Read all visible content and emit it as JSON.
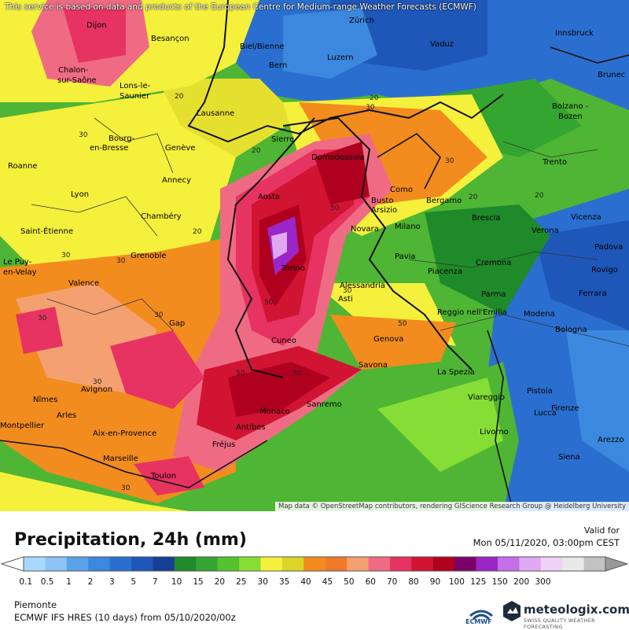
{
  "header": {
    "disclaimer": "This service is based on data and products of the European Centre for Medium-range Weather Forecasts (ECMWF)"
  },
  "map": {
    "attribution": "Map data © OpenStreetMap contributors, rendering GIScience Research Group @ Heidelberg University",
    "cities": [
      {
        "name": "Dijon"
      },
      {
        "name": "Besançon"
      },
      {
        "name": "Biel/Bienne"
      },
      {
        "name": "Zürich"
      },
      {
        "name": "Vaduz"
      },
      {
        "name": "Innsbruck"
      },
      {
        "name": "Chalon-"
      },
      {
        "name": "sur-Saône"
      },
      {
        "name": "Lons-le-"
      },
      {
        "name": "Saunier"
      },
      {
        "name": "Bern"
      },
      {
        "name": "Luzern"
      },
      {
        "name": "Brunec"
      },
      {
        "name": "Lausanne"
      },
      {
        "name": "Bolzano -"
      },
      {
        "name": "Bozen"
      },
      {
        "name": "Bourg-"
      },
      {
        "name": "en-Bresse"
      },
      {
        "name": "Genève"
      },
      {
        "name": "Sierre"
      },
      {
        "name": "Domodossola"
      },
      {
        "name": "Trento"
      },
      {
        "name": "Roanne"
      },
      {
        "name": "Annecy"
      },
      {
        "name": "Como"
      },
      {
        "name": "Lyon"
      },
      {
        "name": "Aosta"
      },
      {
        "name": "Busto"
      },
      {
        "name": "Arsizio"
      },
      {
        "name": "Bergamo"
      },
      {
        "name": "Chambéry"
      },
      {
        "name": "Brescia"
      },
      {
        "name": "Vicenza"
      },
      {
        "name": "Saint-Étienne"
      },
      {
        "name": "Novara"
      },
      {
        "name": "Milano"
      },
      {
        "name": "Verona"
      },
      {
        "name": "Padova"
      },
      {
        "name": "Grenoble"
      },
      {
        "name": "Pavia"
      },
      {
        "name": "Cremona"
      },
      {
        "name": "Le Puy-"
      },
      {
        "name": "en-Velay"
      },
      {
        "name": "Torino"
      },
      {
        "name": "Piacenza"
      },
      {
        "name": "Rovigo"
      },
      {
        "name": "Valence"
      },
      {
        "name": "Alessandria"
      },
      {
        "name": "Parma"
      },
      {
        "name": "Ferrara"
      },
      {
        "name": "Asti"
      },
      {
        "name": "Modena"
      },
      {
        "name": "Reggio nell'Emilia"
      },
      {
        "name": "Gap"
      },
      {
        "name": "Bologna"
      },
      {
        "name": "Cuneo"
      },
      {
        "name": "Genova"
      },
      {
        "name": "Savona"
      },
      {
        "name": "La Spezia"
      },
      {
        "name": "Avignon"
      },
      {
        "name": "Nîmes"
      },
      {
        "name": "Pistoia"
      },
      {
        "name": "Viareggio"
      },
      {
        "name": "Arles"
      },
      {
        "name": "Monaco"
      },
      {
        "name": "Sanremo"
      },
      {
        "name": "Lucca"
      },
      {
        "name": "Firenze"
      },
      {
        "name": "Montpellier"
      },
      {
        "name": "Antibes"
      },
      {
        "name": "Aix-en-Provence"
      },
      {
        "name": "Livorno"
      },
      {
        "name": "Fréjus"
      },
      {
        "name": "Marseille"
      },
      {
        "name": "Arezzo"
      },
      {
        "name": "Siena"
      },
      {
        "name": "Toulon"
      }
    ],
    "contour_labels": [
      "20",
      "30",
      "20",
      "30",
      "20",
      "30",
      "30",
      "30",
      "20",
      "20",
      "30",
      "30",
      "30",
      "30",
      "50",
      "50",
      "50",
      "20",
      "30",
      "30",
      "50"
    ]
  },
  "legend": {
    "title": "Precipitation, 24h (mm)",
    "valid_label": "Valid for",
    "valid_time": "Mon 05/11/2020, 03:00pm CEST",
    "ticks": [
      "0.1",
      "0.5",
      "1",
      "2",
      "3",
      "5",
      "7",
      "10",
      "15",
      "20",
      "25",
      "30",
      "35",
      "40",
      "45",
      "50",
      "60",
      "70",
      "80",
      "90",
      "100",
      "125",
      "150",
      "200",
      "300"
    ],
    "colors": [
      "#a9d8ff",
      "#8cc4f5",
      "#5aa2ea",
      "#3c88de",
      "#2a6fcf",
      "#1f57b8",
      "#143f94",
      "#1e8a2a",
      "#35a531",
      "#55c22f",
      "#86dd36",
      "#f5f03c",
      "#dbd528",
      "#f28c1e",
      "#f07a2a",
      "#f5a070",
      "#ef6b83",
      "#e63362",
      "#d11432",
      "#b00020",
      "#7a006a",
      "#9a26c8",
      "#c46ee8",
      "#e0a8f2",
      "#f1d2f7",
      "#e8e8e8",
      "#c2c2c2"
    ]
  },
  "footer": {
    "region": "Piemonte",
    "model": "ECMWF IFS HRES (10 days) from 05/10/2020/00z",
    "ecmwf_logo_text": "ECMWF",
    "brand_name": "meteologix.com",
    "brand_tagline": "SWISS QUALITY WEATHER FORECASTING"
  }
}
